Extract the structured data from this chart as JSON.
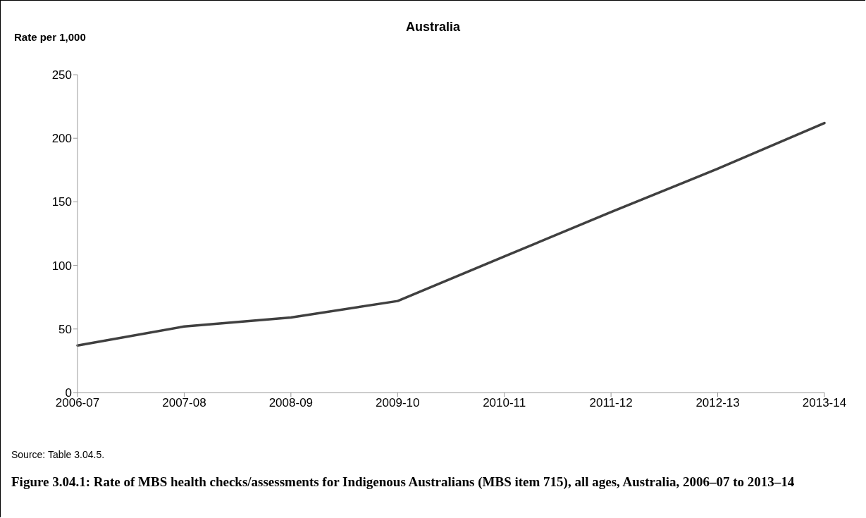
{
  "chart_data": {
    "type": "line",
    "title": "Australia",
    "ylabel": "Rate per 1,000",
    "categories": [
      "2006-07",
      "2007-08",
      "2008-09",
      "2009-10",
      "2010-11",
      "2011-12",
      "2012-13",
      "2013-14"
    ],
    "series": [
      {
        "color": "#404040",
        "values": [
          37,
          52,
          59,
          72,
          107,
          142,
          176,
          212
        ]
      }
    ],
    "ylim": [
      0,
      250
    ],
    "yticks": [
      0,
      50,
      100,
      150,
      200,
      250
    ],
    "grid": false,
    "legend": false,
    "marker": "none",
    "line_style": "solid",
    "annotations": [
      "Source: Table 3.04.5.",
      "Figure 3.04.1: Rate of MBS health checks/assessments for Indigenous Australians (MBS item 715), all ages, Australia, 2006–07 to 2013–14"
    ]
  }
}
